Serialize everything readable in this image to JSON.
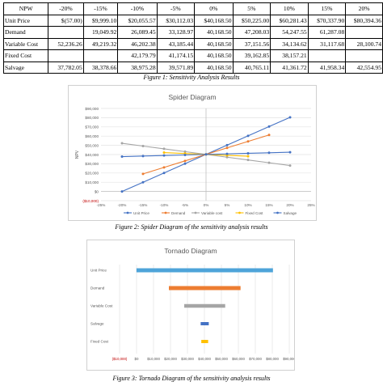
{
  "table": {
    "columns": [
      "NPW",
      "-20%",
      "-15%",
      "-10%",
      "-5%",
      "0%",
      "5%",
      "10%",
      "15%",
      "20%"
    ],
    "rows": [
      {
        "label": "Unit Price",
        "values": [
          "$(57.00)",
          "$9,999.10",
          "$20,055.57",
          "$30,112.03",
          "$40,168.50",
          "$50,225.00",
          "$60,281.43",
          "$70,337.90",
          "$80,394.36"
        ]
      },
      {
        "label": "Demand",
        "values": [
          "",
          "19,049.92",
          "26,089.45",
          "33,128.97",
          "40,168.50",
          "47,208.03",
          "54,247.55",
          "61,287.08",
          ""
        ]
      },
      {
        "label": "Variable Cost",
        "values": [
          "52,236.26",
          "49,219.32",
          "46,202.38",
          "43,185.44",
          "40,168.50",
          "37,151.56",
          "34,134.62",
          "31,117.68",
          "28,100.74"
        ]
      },
      {
        "label": "Fixed Cost",
        "values": [
          "",
          "",
          "42,179.79",
          "41,174.15",
          "40,168.50",
          "39,162.85",
          "38,157.21",
          "",
          ""
        ]
      },
      {
        "label": "Salvage",
        "values": [
          "37,782.05",
          "38,378.66",
          "38,975.28",
          "39,571.89",
          "40,168.50",
          "40,765.11",
          "41,361.72",
          "41,958.34",
          "42,554.95"
        ]
      }
    ]
  },
  "captions": {
    "fig1": "Figure 1: Sensitivity Analysis Results",
    "fig2": "Figure 2: Spider Diagram of the sensitivity analysis results",
    "fig3": "Figure 3: Tornado Diagram of the sensitivity analysis results"
  },
  "chart_data": [
    {
      "type": "line",
      "title": "Spider Diagram",
      "ylabel": "NPV",
      "xlabel": "",
      "x": [
        "-25%",
        "-20%",
        "-15%",
        "-10%",
        "-5%",
        "0%",
        "5%",
        "10%",
        "15%",
        "20%",
        "25%"
      ],
      "x_values": [
        -25,
        -20,
        -15,
        -10,
        -5,
        0,
        5,
        10,
        15,
        20,
        25
      ],
      "ylim": [
        -10000,
        90000
      ],
      "yticks": [
        "($10,000)",
        "$0",
        "$10,000",
        "$20,000",
        "$30,000",
        "$40,000",
        "$50,000",
        "$60,000",
        "$70,000",
        "$80,000",
        "$90,000"
      ],
      "ytick_values": [
        -10000,
        0,
        10000,
        20000,
        30000,
        40000,
        50000,
        60000,
        70000,
        80000,
        90000
      ],
      "grid": true,
      "legend": "bottom",
      "series": [
        {
          "name": "Unit Price",
          "color": "#4472c4",
          "x": [
            -20,
            -15,
            -10,
            -5,
            0,
            5,
            10,
            15,
            20
          ],
          "values": [
            -57,
            9999.1,
            20055.57,
            30112.03,
            40168.5,
            50225,
            60281.43,
            70337.9,
            80394.36
          ]
        },
        {
          "name": "Demand",
          "color": "#ed7d31",
          "x": [
            -15,
            -10,
            -5,
            0,
            5,
            10,
            15
          ],
          "values": [
            19049.92,
            26089.45,
            33128.97,
            40168.5,
            47208.03,
            54247.55,
            61287.08
          ]
        },
        {
          "name": "Variable cost",
          "color": "#a5a5a5",
          "x": [
            -20,
            -15,
            -10,
            -5,
            0,
            5,
            10,
            15,
            20
          ],
          "values": [
            52236.26,
            49219.32,
            46202.38,
            43185.44,
            40168.5,
            37151.56,
            34134.62,
            31117.68,
            28100.74
          ]
        },
        {
          "name": "Fixed Cost",
          "color": "#ffc000",
          "x": [
            -10,
            -5,
            0,
            5,
            10
          ],
          "values": [
            42179.79,
            41174.15,
            40168.5,
            39162.85,
            38157.21
          ]
        },
        {
          "name": "Salvage",
          "color": "#4472c4",
          "x": [
            -20,
            -15,
            -10,
            -5,
            0,
            5,
            10,
            15,
            20
          ],
          "values": [
            37782.05,
            38378.66,
            38975.28,
            39571.89,
            40168.5,
            40765.11,
            41361.72,
            41958.34,
            42554.95
          ]
        }
      ]
    },
    {
      "type": "bar",
      "orientation": "horizontal",
      "title": "Tornado Diagram",
      "categories": [
        "Unit Price",
        "Demand",
        "Variable Cost",
        "Salvage",
        "Fixed Cost"
      ],
      "ranges": [
        [
          -57,
          80394.36
        ],
        [
          19049.92,
          61287.08
        ],
        [
          28100.74,
          52236.26
        ],
        [
          37782.05,
          42554.95
        ],
        [
          38157.21,
          42179.79
        ]
      ],
      "colors": [
        "#4ea4d9",
        "#ed7d31",
        "#a5a5a5",
        "#4472c4",
        "#ffc000"
      ],
      "xlim": [
        -10000,
        90000
      ],
      "xticks": [
        "($10,000)",
        "$0",
        "$10,000",
        "$20,000",
        "$30,000",
        "$40,000",
        "$50,000",
        "$60,000",
        "$70,000",
        "$80,000",
        "$90,000"
      ],
      "xtick_values": [
        -10000,
        0,
        10000,
        20000,
        30000,
        40000,
        50000,
        60000,
        70000,
        80000,
        90000
      ],
      "grid": true
    }
  ]
}
